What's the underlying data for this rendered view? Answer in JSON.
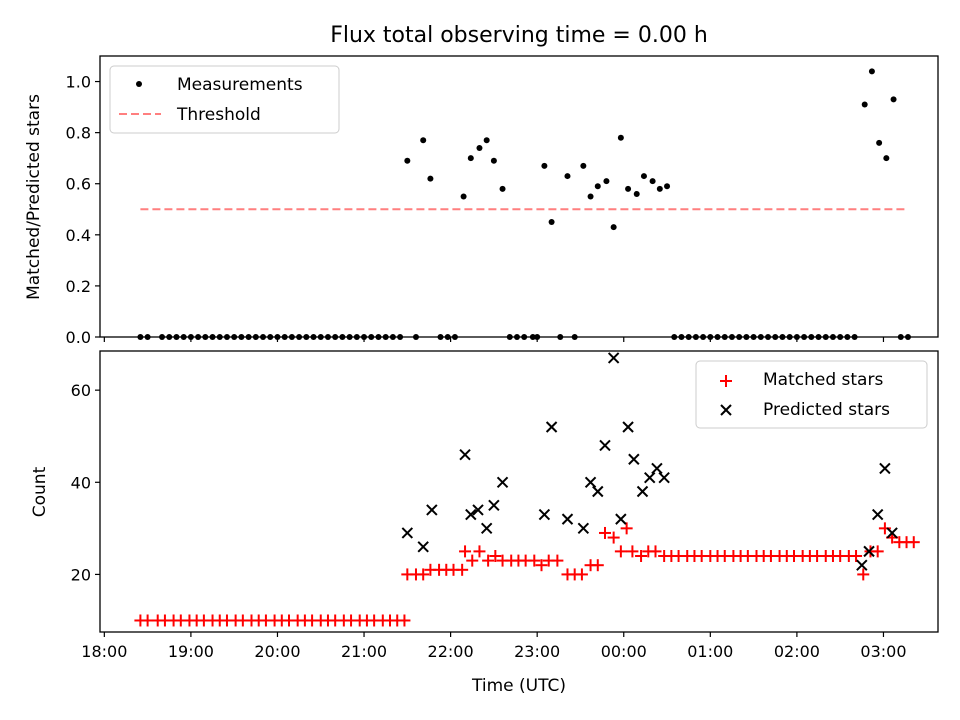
{
  "title": "Flux total observing time = 0.00 h",
  "chart_data": [
    {
      "type": "scatter",
      "ylabel": "Matched/Predicted stars",
      "xlim_hours": [
        17.95,
        27.63
      ],
      "ylim": [
        0,
        1.1
      ],
      "yticks": [
        0.0,
        0.2,
        0.4,
        0.6,
        0.8,
        1.0
      ],
      "ytick_labels": [
        "0.0",
        "0.2",
        "0.4",
        "0.6",
        "0.8",
        "1.0"
      ],
      "legend_position": "top-left",
      "threshold": {
        "name": "Threshold",
        "value": 0.5,
        "x_start": "18:25",
        "x_end": "03:15",
        "color": "#ff7f7f"
      },
      "series": [
        {
          "name": "Measurements",
          "color": "#000000",
          "points": [
            [
              "18:25",
              0
            ],
            [
              "18:30",
              0
            ],
            [
              "18:40",
              0
            ],
            [
              "18:45",
              0
            ],
            [
              "18:50",
              0
            ],
            [
              "18:55",
              0
            ],
            [
              "19:00",
              0
            ],
            [
              "19:05",
              0
            ],
            [
              "19:10",
              0
            ],
            [
              "19:15",
              0
            ],
            [
              "19:20",
              0
            ],
            [
              "19:25",
              0
            ],
            [
              "19:30",
              0
            ],
            [
              "19:35",
              0
            ],
            [
              "19:40",
              0
            ],
            [
              "19:45",
              0
            ],
            [
              "19:50",
              0
            ],
            [
              "19:55",
              0
            ],
            [
              "20:00",
              0
            ],
            [
              "20:05",
              0
            ],
            [
              "20:10",
              0
            ],
            [
              "20:15",
              0
            ],
            [
              "20:20",
              0
            ],
            [
              "20:25",
              0
            ],
            [
              "20:30",
              0
            ],
            [
              "20:35",
              0
            ],
            [
              "20:40",
              0
            ],
            [
              "20:45",
              0
            ],
            [
              "20:50",
              0
            ],
            [
              "20:55",
              0
            ],
            [
              "21:00",
              0
            ],
            [
              "21:05",
              0
            ],
            [
              "21:10",
              0
            ],
            [
              "21:15",
              0
            ],
            [
              "21:20",
              0
            ],
            [
              "21:25",
              0
            ],
            [
              "21:36",
              0
            ],
            [
              "21:53",
              0
            ],
            [
              "21:58",
              0
            ],
            [
              "22:03",
              0
            ],
            [
              "21:30",
              0.69
            ],
            [
              "21:41",
              0.77
            ],
            [
              "21:46",
              0.62
            ],
            [
              "22:09",
              0.55
            ],
            [
              "22:14",
              0.7
            ],
            [
              "22:20",
              0.74
            ],
            [
              "22:25",
              0.77
            ],
            [
              "22:30",
              0.69
            ],
            [
              "22:36",
              0.58
            ],
            [
              "22:41",
              0
            ],
            [
              "22:46",
              0
            ],
            [
              "22:51",
              0
            ],
            [
              "22:57",
              0
            ],
            [
              "23:00",
              0
            ],
            [
              "23:05",
              0.67
            ],
            [
              "23:10",
              0.45
            ],
            [
              "23:16",
              0
            ],
            [
              "23:21",
              0.63
            ],
            [
              "23:26",
              0
            ],
            [
              "23:32",
              0.67
            ],
            [
              "23:37",
              0.55
            ],
            [
              "23:42",
              0.59
            ],
            [
              "23:48",
              0.61
            ],
            [
              "23:53",
              0.43
            ],
            [
              "23:58",
              0.78
            ],
            [
              "00:03",
              0.58
            ],
            [
              "00:09",
              0.56
            ],
            [
              "00:14",
              0.63
            ],
            [
              "00:20",
              0.61
            ],
            [
              "00:25",
              0.58
            ],
            [
              "00:30",
              0.59
            ],
            [
              "00:35",
              0
            ],
            [
              "00:40",
              0
            ],
            [
              "00:45",
              0
            ],
            [
              "00:50",
              0
            ],
            [
              "00:55",
              0
            ],
            [
              "01:00",
              0
            ],
            [
              "01:05",
              0
            ],
            [
              "01:10",
              0
            ],
            [
              "01:15",
              0
            ],
            [
              "01:20",
              0
            ],
            [
              "01:25",
              0
            ],
            [
              "01:30",
              0
            ],
            [
              "01:35",
              0
            ],
            [
              "01:40",
              0
            ],
            [
              "01:45",
              0
            ],
            [
              "01:50",
              0
            ],
            [
              "01:55",
              0
            ],
            [
              "02:00",
              0
            ],
            [
              "02:05",
              0
            ],
            [
              "02:10",
              0
            ],
            [
              "02:15",
              0
            ],
            [
              "02:20",
              0
            ],
            [
              "02:25",
              0
            ],
            [
              "02:30",
              0
            ],
            [
              "02:35",
              0
            ],
            [
              "02:40",
              0
            ],
            [
              "02:47",
              0.91
            ],
            [
              "02:52",
              1.04
            ],
            [
              "02:57",
              0.76
            ],
            [
              "03:02",
              0.7
            ],
            [
              "03:07",
              0.93
            ],
            [
              "03:12",
              0
            ],
            [
              "03:17",
              0
            ]
          ]
        }
      ]
    },
    {
      "type": "scatter",
      "ylabel": "Count",
      "xlabel": "Time (UTC)",
      "xlim_hours": [
        17.95,
        27.63
      ],
      "ylim": [
        7.5,
        68.5
      ],
      "yticks": [
        20,
        40,
        60
      ],
      "ytick_labels": [
        "20",
        "40",
        "60"
      ],
      "xticks": [
        "18:00",
        "19:00",
        "20:00",
        "21:00",
        "22:00",
        "23:00",
        "00:00",
        "01:00",
        "02:00",
        "03:00"
      ],
      "legend_position": "top-right",
      "series": [
        {
          "name": "Matched stars",
          "marker": "plus",
          "color": "#ff0000",
          "points": [
            [
              "18:25",
              10
            ],
            [
              "18:30",
              10
            ],
            [
              "18:37",
              10
            ],
            [
              "18:42",
              10
            ],
            [
              "18:48",
              10
            ],
            [
              "18:53",
              10
            ],
            [
              "18:59",
              10
            ],
            [
              "19:04",
              10
            ],
            [
              "19:09",
              10
            ],
            [
              "19:15",
              10
            ],
            [
              "19:20",
              10
            ],
            [
              "19:25",
              10
            ],
            [
              "19:31",
              10
            ],
            [
              "19:36",
              10
            ],
            [
              "19:42",
              10
            ],
            [
              "19:47",
              10
            ],
            [
              "19:52",
              10
            ],
            [
              "19:58",
              10
            ],
            [
              "20:03",
              10
            ],
            [
              "20:08",
              10
            ],
            [
              "20:14",
              10
            ],
            [
              "20:19",
              10
            ],
            [
              "20:24",
              10
            ],
            [
              "20:30",
              10
            ],
            [
              "20:35",
              10
            ],
            [
              "20:40",
              10
            ],
            [
              "20:46",
              10
            ],
            [
              "20:51",
              10
            ],
            [
              "20:57",
              10
            ],
            [
              "21:02",
              10
            ],
            [
              "21:07",
              10
            ],
            [
              "21:13",
              10
            ],
            [
              "21:18",
              10
            ],
            [
              "21:23",
              10
            ],
            [
              "21:28",
              10
            ],
            [
              "21:30",
              20
            ],
            [
              "21:36",
              20
            ],
            [
              "21:41",
              20
            ],
            [
              "21:46",
              21
            ],
            [
              "21:52",
              21
            ],
            [
              "21:57",
              21
            ],
            [
              "22:02",
              21
            ],
            [
              "22:08",
              21
            ],
            [
              "22:10",
              25
            ],
            [
              "22:15",
              23
            ],
            [
              "22:20",
              25
            ],
            [
              "22:26",
              23
            ],
            [
              "22:31",
              24
            ],
            [
              "22:36",
              23
            ],
            [
              "22:42",
              23
            ],
            [
              "22:47",
              23
            ],
            [
              "22:52",
              23
            ],
            [
              "22:58",
              23
            ],
            [
              "23:03",
              22
            ],
            [
              "23:08",
              23
            ],
            [
              "23:14",
              23
            ],
            [
              "23:21",
              20
            ],
            [
              "23:26",
              20
            ],
            [
              "23:31",
              20
            ],
            [
              "23:37",
              22
            ],
            [
              "23:42",
              22
            ],
            [
              "23:47",
              29
            ],
            [
              "23:53",
              28
            ],
            [
              "23:58",
              25
            ],
            [
              "00:02",
              30
            ],
            [
              "00:06",
              25
            ],
            [
              "00:12",
              24
            ],
            [
              "00:17",
              25
            ],
            [
              "00:22",
              25
            ],
            [
              "00:28",
              24
            ],
            [
              "00:33",
              24
            ],
            [
              "00:38",
              24
            ],
            [
              "00:44",
              24
            ],
            [
              "00:49",
              24
            ],
            [
              "00:54",
              24
            ],
            [
              "01:00",
              24
            ],
            [
              "01:05",
              24
            ],
            [
              "01:10",
              24
            ],
            [
              "01:16",
              24
            ],
            [
              "01:21",
              24
            ],
            [
              "01:26",
              24
            ],
            [
              "01:32",
              24
            ],
            [
              "01:37",
              24
            ],
            [
              "01:42",
              24
            ],
            [
              "01:48",
              24
            ],
            [
              "01:53",
              24
            ],
            [
              "01:58",
              24
            ],
            [
              "02:04",
              24
            ],
            [
              "02:09",
              24
            ],
            [
              "02:14",
              24
            ],
            [
              "02:20",
              24
            ],
            [
              "02:25",
              24
            ],
            [
              "02:30",
              24
            ],
            [
              "02:36",
              24
            ],
            [
              "02:41",
              24
            ],
            [
              "02:46",
              20
            ],
            [
              "02:51",
              25
            ],
            [
              "02:56",
              25
            ],
            [
              "03:01",
              30
            ],
            [
              "03:06",
              28
            ],
            [
              "03:11",
              27
            ],
            [
              "03:16",
              27
            ],
            [
              "03:21",
              27
            ]
          ]
        },
        {
          "name": "Predicted stars",
          "marker": "x",
          "color": "#000000",
          "points": [
            [
              "21:30",
              29
            ],
            [
              "21:41",
              26
            ],
            [
              "21:47",
              34
            ],
            [
              "22:10",
              46
            ],
            [
              "22:14",
              33
            ],
            [
              "22:19",
              34
            ],
            [
              "22:25",
              30
            ],
            [
              "22:30",
              35
            ],
            [
              "22:36",
              40
            ],
            [
              "23:05",
              33
            ],
            [
              "23:10",
              52
            ],
            [
              "23:21",
              32
            ],
            [
              "23:32",
              30
            ],
            [
              "23:37",
              40
            ],
            [
              "23:42",
              38
            ],
            [
              "23:47",
              48
            ],
            [
              "23:53",
              67
            ],
            [
              "23:58",
              32
            ],
            [
              "00:03",
              52
            ],
            [
              "00:07",
              45
            ],
            [
              "00:13",
              38
            ],
            [
              "00:18",
              41
            ],
            [
              "00:23",
              43
            ],
            [
              "00:28",
              41
            ],
            [
              "02:45",
              22
            ],
            [
              "02:50",
              25
            ],
            [
              "02:56",
              33
            ],
            [
              "03:01",
              43
            ],
            [
              "03:06",
              29
            ]
          ]
        }
      ]
    }
  ]
}
